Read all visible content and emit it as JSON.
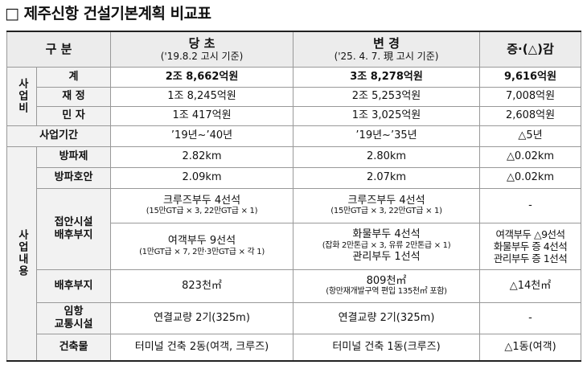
{
  "title": "□ 제주신항 건설기본계획 비교표",
  "table": {
    "header": {
      "category": "구 분",
      "columns": [
        {
          "title": "당 초",
          "note": "('19.8.2 고시 기준)"
        },
        {
          "title": "변 경",
          "note": "('25. 4. 7. 現 고시 기준)"
        },
        {
          "title": "증·(△)감"
        }
      ]
    },
    "groups": [
      "사업비",
      "사업내용"
    ],
    "rows": [
      {
        "label": [
          "계"
        ],
        "cells": [
          [
            "2조 8,662억원"
          ],
          [
            "3조 8,278억원"
          ],
          [
            "9,616억원"
          ]
        ]
      },
      {
        "label": [
          "재 정"
        ],
        "cells": [
          [
            "1조 8,245억원"
          ],
          [
            "2조 5,253억원"
          ],
          [
            "7,008억원"
          ]
        ]
      },
      {
        "label": [
          "민 자"
        ],
        "cells": [
          [
            "1조 417억원"
          ],
          [
            "1조 3,025억원"
          ],
          [
            "2,608억원"
          ]
        ]
      },
      {
        "label": [
          "사업기간"
        ],
        "cells": [
          [
            "’19년~’40년"
          ],
          [
            "’19년~’35년"
          ],
          [
            "△5년"
          ]
        ]
      },
      {
        "label": [
          "방파제"
        ],
        "cells": [
          [
            "2.82km"
          ],
          [
            "2.80km"
          ],
          [
            "△0.02km"
          ]
        ]
      },
      {
        "label": [
          "방파호안"
        ],
        "cells": [
          [
            "2.09km"
          ],
          [
            "2.07km"
          ],
          [
            "△0.02km"
          ]
        ]
      },
      {
        "label": [
          "접안시설",
          "배후부지"
        ],
        "cells": [
          [
            "크루즈부두 4선석",
            "(15만GT급 × 3, 22만GT급 × 1)"
          ],
          [
            "크루즈부두 4선석",
            "(15만GT급 × 3, 22만GT급 × 1)"
          ],
          [
            "-"
          ]
        ]
      },
      {
        "cells": [
          [
            "여객부두 9선석",
            "(1만GT급 × 7, 2만·3만GT급 × 각 1)"
          ],
          [
            "화물부두 4선석",
            "(잡화 2만톤급 × 3, 유류 2만톤급 × 1)",
            "관리부두 1선석"
          ],
          [
            "여객부두 △9선석",
            "화물부두 증 4선석",
            "관리부두 증 1선석"
          ]
        ]
      },
      {
        "label": [
          "배후부지"
        ],
        "cells": [
          [
            "823천㎡"
          ],
          [
            "809천㎡",
            "(항만재개발구역 편입 135천㎡ 포함)"
          ],
          [
            "△14천㎡"
          ]
        ]
      },
      {
        "label": [
          "임항",
          "교통시설"
        ],
        "cells": [
          [
            "연결교량 2기(325m)"
          ],
          [
            "연결교량 2기(325m)"
          ],
          [
            "-"
          ]
        ]
      },
      {
        "label": [
          "건축물"
        ],
        "cells": [
          [
            "터미널 건축 2동(여객, 크루즈)"
          ],
          [
            "터미널 건축 1동(크루즈)"
          ],
          [
            "△1동(여객)"
          ]
        ]
      }
    ]
  }
}
